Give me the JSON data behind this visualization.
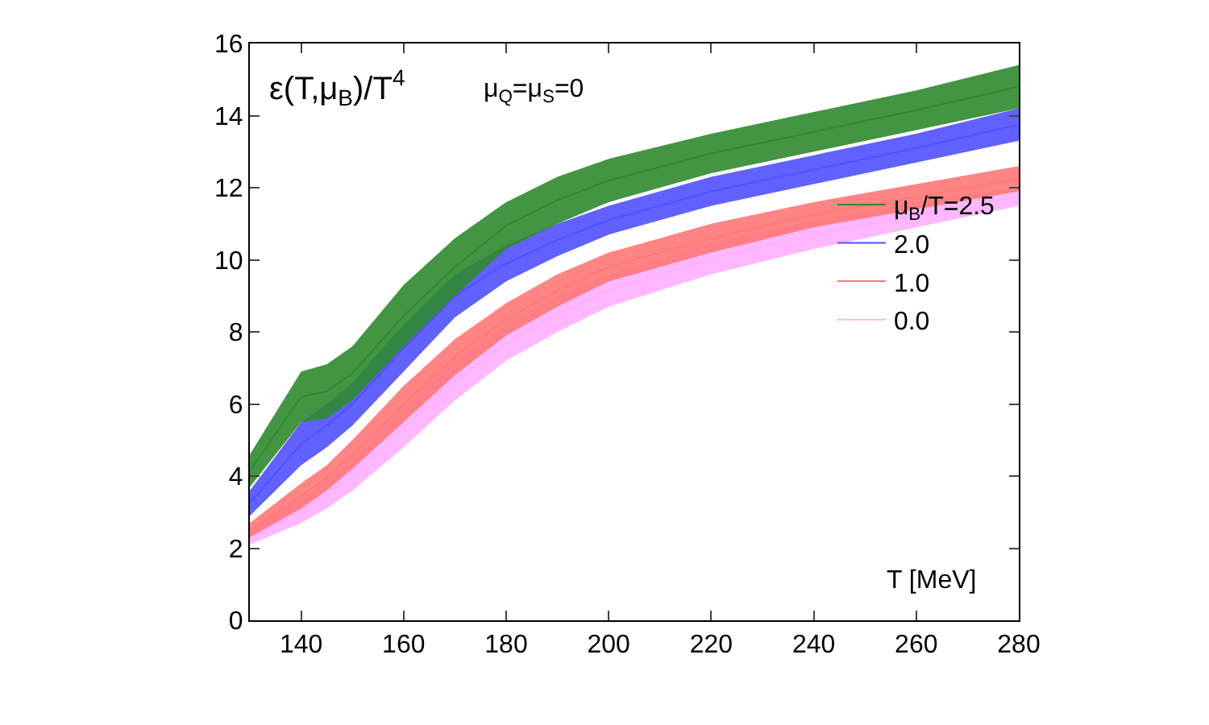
{
  "chart_data": {
    "type": "line",
    "xlabel": "T [MeV]",
    "annotations": [
      "ε(T,μ$_{B}$)/T$^{4}$",
      "μ$_{Q}$=μ$_{S}$=0"
    ],
    "x": [
      130,
      140,
      145,
      150,
      160,
      170,
      180,
      190,
      200,
      220,
      240,
      260,
      280
    ],
    "series": [
      {
        "name": "μ$_{B}$/T=2.5",
        "color": "#2f8a2f",
        "values": [
          4.15,
          6.2,
          6.35,
          6.85,
          8.45,
          9.8,
          10.95,
          11.65,
          12.2,
          12.95,
          13.55,
          14.15,
          14.8
        ],
        "upper": [
          4.6,
          6.9,
          7.1,
          7.6,
          9.3,
          10.6,
          11.6,
          12.3,
          12.8,
          13.5,
          14.1,
          14.7,
          15.4
        ],
        "lower": [
          3.7,
          5.5,
          5.6,
          6.1,
          7.6,
          9.0,
          10.3,
          11.0,
          11.6,
          12.4,
          13.0,
          13.6,
          14.2
        ]
      },
      {
        "name": "2.0",
        "color": "#5050ff",
        "values": [
          3.25,
          4.9,
          5.4,
          6.0,
          7.55,
          9.0,
          9.9,
          10.55,
          11.1,
          11.9,
          12.5,
          13.1,
          13.75
        ],
        "upper": [
          3.6,
          5.5,
          6.0,
          6.6,
          8.2,
          9.6,
          10.4,
          11.0,
          11.5,
          12.3,
          12.9,
          13.5,
          14.2
        ],
        "lower": [
          2.9,
          4.3,
          4.8,
          5.4,
          6.9,
          8.4,
          9.4,
          10.1,
          10.7,
          11.5,
          12.1,
          12.7,
          13.3
        ]
      },
      {
        "name": "1.0",
        "color": "#ff7878",
        "values": [
          2.5,
          3.45,
          3.95,
          4.6,
          6.0,
          7.3,
          8.35,
          9.15,
          9.8,
          10.6,
          11.25,
          11.75,
          12.25
        ],
        "upper": [
          2.7,
          3.8,
          4.3,
          5.0,
          6.5,
          7.8,
          8.8,
          9.6,
          10.2,
          11.0,
          11.6,
          12.1,
          12.6
        ],
        "lower": [
          2.3,
          3.1,
          3.6,
          4.2,
          5.5,
          6.8,
          7.9,
          8.7,
          9.4,
          10.2,
          10.9,
          11.4,
          11.9
        ]
      },
      {
        "name": "0.0",
        "color": "#ffb0ff",
        "values": [
          2.3,
          3.05,
          3.5,
          4.05,
          5.35,
          6.65,
          7.7,
          8.5,
          9.15,
          10.05,
          10.7,
          11.25,
          11.75
        ],
        "upper": [
          2.5,
          3.4,
          3.9,
          4.5,
          5.9,
          7.2,
          8.2,
          9.0,
          9.6,
          10.5,
          11.1,
          11.6,
          12.0
        ],
        "lower": [
          2.1,
          2.7,
          3.1,
          3.6,
          4.8,
          6.1,
          7.2,
          8.0,
          8.7,
          9.6,
          10.3,
          10.9,
          11.5
        ]
      }
    ],
    "xlim": [
      130,
      280
    ],
    "xticks": [
      140,
      160,
      180,
      200,
      220,
      240,
      260,
      280
    ],
    "ylim": [
      0,
      16
    ],
    "yticks": [
      0,
      2,
      4,
      6,
      8,
      10,
      12,
      14,
      16
    ],
    "legend": "right",
    "grid": false
  }
}
